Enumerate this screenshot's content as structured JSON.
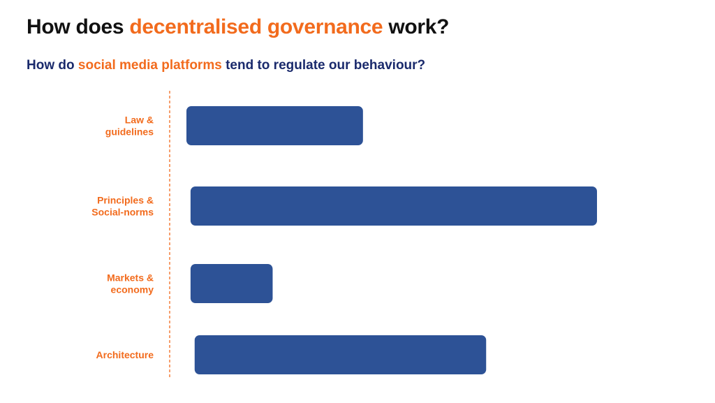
{
  "title": {
    "prefix": "How does ",
    "highlight": "decentralised governance",
    "suffix": " work?"
  },
  "subtitle": {
    "prefix": "How do ",
    "highlight": "social media platforms",
    "suffix": " tend to regulate our behaviour?"
  },
  "colors": {
    "accent": "#f26b1d",
    "bar": "#2d5296",
    "subtitle": "#1a2a6c"
  },
  "chart_data": {
    "type": "bar",
    "orientation": "horizontal",
    "categories": [
      [
        "Law &",
        "guidelines"
      ],
      [
        "Principles &",
        "Social-norms"
      ],
      [
        "Markets &",
        "economy"
      ],
      [
        "Architecture"
      ]
    ],
    "series": [
      {
        "values": [
          [
            0.0,
            0.43
          ],
          [
            0.01,
            1.0
          ],
          [
            0.01,
            0.21
          ],
          [
            0.02,
            0.73
          ]
        ]
      }
    ],
    "axis_line": "dashed",
    "grid": false,
    "legend": "none"
  }
}
